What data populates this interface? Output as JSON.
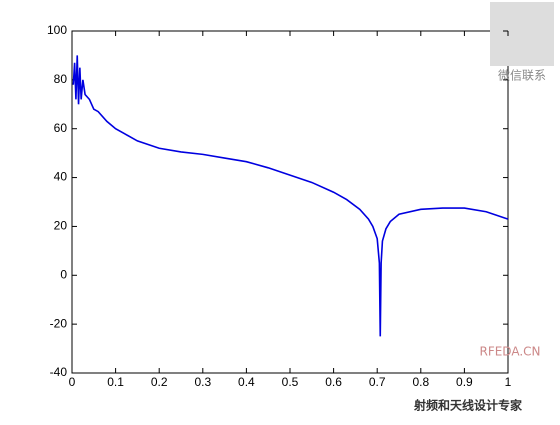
{
  "chart_data": {
    "type": "line",
    "x": [
      0.003,
      0.006,
      0.009,
      0.012,
      0.015,
      0.018,
      0.021,
      0.025,
      0.03,
      0.04,
      0.05,
      0.06,
      0.08,
      0.1,
      0.12,
      0.15,
      0.2,
      0.25,
      0.3,
      0.35,
      0.4,
      0.45,
      0.5,
      0.55,
      0.6,
      0.63,
      0.66,
      0.68,
      0.69,
      0.7,
      0.705,
      0.707,
      0.709,
      0.712,
      0.72,
      0.73,
      0.75,
      0.8,
      0.85,
      0.9,
      0.95,
      1.0
    ],
    "values": [
      78,
      87,
      72,
      90,
      70,
      85,
      72,
      80,
      74,
      72,
      68,
      67,
      63,
      60,
      58,
      55,
      52,
      50.5,
      49.5,
      48,
      46.5,
      44,
      41,
      38,
      34,
      31,
      27,
      23,
      20,
      15,
      5,
      -25,
      5,
      14,
      19,
      22,
      25,
      27,
      27.5,
      27.5,
      26,
      23
    ],
    "color": "#0000e0",
    "xlim": [
      0,
      1
    ],
    "xticks": [
      0,
      0.1,
      0.2,
      0.3,
      0.4,
      0.5,
      0.6,
      0.7,
      0.8,
      0.9,
      1
    ],
    "ylim": [
      -40,
      100
    ],
    "yticks": [
      -40,
      -20,
      0,
      20,
      40,
      60,
      80,
      100
    ],
    "annotations": [
      "微信联系",
      "RFEDA.CN",
      "射频和天线设计专家"
    ]
  }
}
